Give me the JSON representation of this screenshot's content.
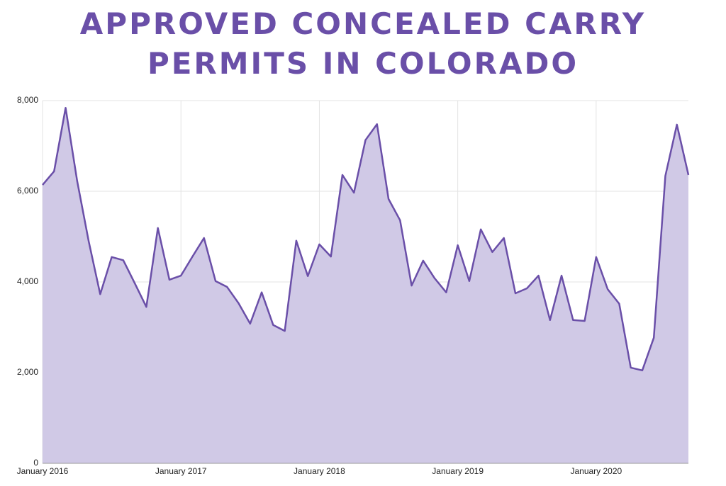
{
  "chart_data": {
    "type": "area",
    "title": "APPROVED CONCEALED CARRY PERMITS IN COLORADO",
    "x": [
      "2016-01",
      "2016-02",
      "2016-03",
      "2016-04",
      "2016-05",
      "2016-06",
      "2016-07",
      "2016-08",
      "2016-09",
      "2016-10",
      "2016-11",
      "2016-12",
      "2017-01",
      "2017-02",
      "2017-03",
      "2017-04",
      "2017-05",
      "2017-06",
      "2017-07",
      "2017-08",
      "2017-09",
      "2017-10",
      "2017-11",
      "2017-12",
      "2018-01",
      "2018-02",
      "2018-03",
      "2018-04",
      "2018-05",
      "2018-06",
      "2018-07",
      "2018-08",
      "2018-09",
      "2018-10",
      "2018-11",
      "2018-12",
      "2019-01",
      "2019-02",
      "2019-03",
      "2019-04",
      "2019-05",
      "2019-06",
      "2019-07",
      "2019-08",
      "2019-09",
      "2019-10",
      "2019-11",
      "2019-12",
      "2020-01",
      "2020-02",
      "2020-03",
      "2020-04",
      "2020-05",
      "2020-06",
      "2020-07",
      "2020-08",
      "2020-09"
    ],
    "series": [
      {
        "color": "#6a4fa8",
        "fill": "#d0c9e6",
        "values": [
          6140,
          6440,
          7840,
          6230,
          4900,
          3730,
          4550,
          4480,
          3970,
          3450,
          5190,
          4050,
          4140,
          4560,
          4970,
          4020,
          3890,
          3530,
          3080,
          3770,
          3050,
          2920,
          4910,
          4130,
          4830,
          4560,
          6360,
          5970,
          7130,
          7480,
          5830,
          5360,
          3920,
          4470,
          4080,
          3770,
          4810,
          4020,
          5160,
          4660,
          4970,
          3750,
          3860,
          4140,
          3160,
          4140,
          3160,
          3140,
          4550,
          3840,
          3520,
          2110,
          2050,
          2770,
          6340,
          7470,
          6360
        ]
      }
    ],
    "xlim": [
      "2016-01",
      "2020-09"
    ],
    "xticks": [
      {
        "value": "2016-01",
        "label": "January 2016"
      },
      {
        "value": "2017-01",
        "label": "January 2017"
      },
      {
        "value": "2018-01",
        "label": "January 2018"
      },
      {
        "value": "2019-01",
        "label": "January 2019"
      },
      {
        "value": "2020-01",
        "label": "January 2020"
      }
    ],
    "ylim": [
      0,
      8000
    ],
    "yticks": [
      0,
      {
        "value": 2000,
        "label": "2,000"
      },
      {
        "value": 4000,
        "label": "4,000"
      },
      {
        "value": 6000,
        "label": "6,000"
      },
      {
        "value": 8000,
        "label": "8,000"
      }
    ],
    "grid": true
  }
}
